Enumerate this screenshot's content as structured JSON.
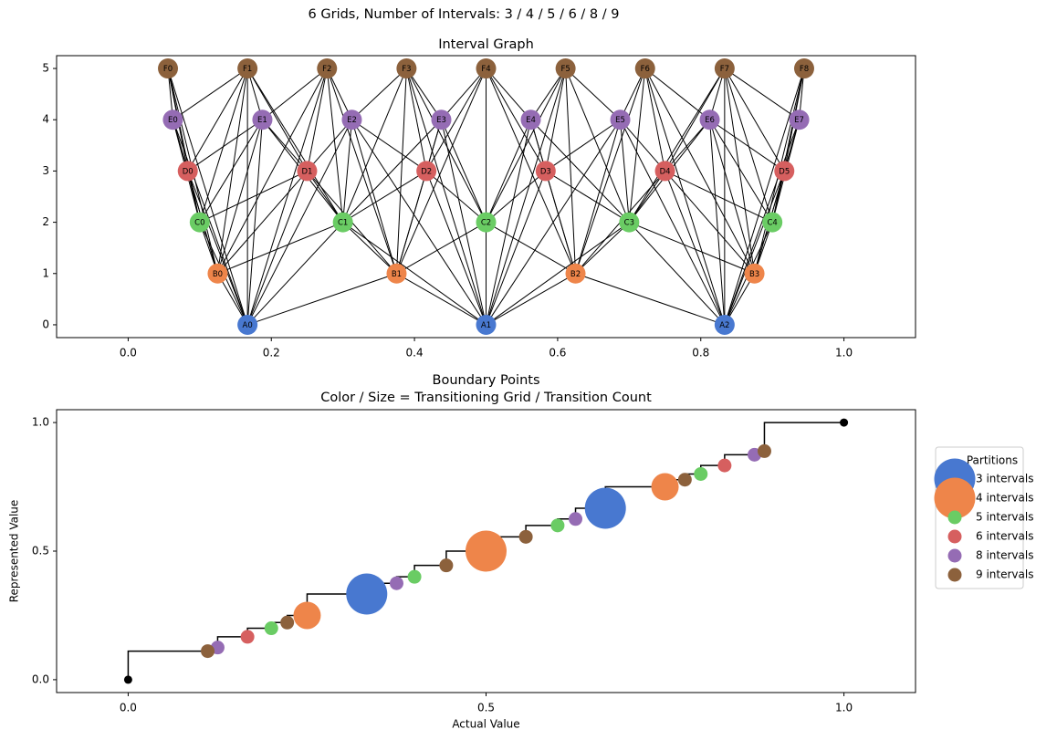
{
  "title": "6 Grids, Number of Intervals: 3 / 4 / 5 / 6 / 8 / 9",
  "chart_data": [
    {
      "type": "graph",
      "title": "Interval Graph",
      "xlim": [
        -0.1,
        1.1
      ],
      "ylim": [
        -0.25,
        5.25
      ],
      "xticks": [
        {
          "value": 0,
          "label": "0.0"
        },
        {
          "value": 0.2,
          "label": "0.2"
        },
        {
          "value": 0.4,
          "label": "0.4"
        },
        {
          "value": 0.6,
          "label": "0.6"
        },
        {
          "value": 0.8,
          "label": "0.8"
        },
        {
          "value": 1,
          "label": "1.0"
        }
      ],
      "yticks": [
        0,
        1,
        2,
        3,
        4,
        5
      ],
      "series": [
        {
          "color": "#4878d0",
          "labels": [
            "A0",
            "A1",
            "A2"
          ],
          "x": [
            0.1667,
            0.5,
            0.8333
          ],
          "values": [
            0,
            0,
            0
          ]
        },
        {
          "color": "#ee854a",
          "labels": [
            "B0",
            "B1",
            "B2",
            "B3"
          ],
          "x": [
            0.125,
            0.375,
            0.625,
            0.875
          ],
          "values": [
            1,
            1,
            1,
            1
          ]
        },
        {
          "color": "#6acc64",
          "labels": [
            "C0",
            "C1",
            "C2",
            "C3",
            "C4"
          ],
          "x": [
            0.1,
            0.3,
            0.5,
            0.7,
            0.9
          ],
          "values": [
            2,
            2,
            2,
            2,
            2
          ]
        },
        {
          "color": "#d65f5f",
          "labels": [
            "D0",
            "D1",
            "D2",
            "D3",
            "D4",
            "D5"
          ],
          "x": [
            0.0833,
            0.25,
            0.4167,
            0.5833,
            0.75,
            0.9167
          ],
          "values": [
            3,
            3,
            3,
            3,
            3,
            3
          ]
        },
        {
          "color": "#956cb4",
          "labels": [
            "E0",
            "E1",
            "E2",
            "E3",
            "E4",
            "E5",
            "E6",
            "E7"
          ],
          "x": [
            0.0625,
            0.1875,
            0.3125,
            0.4375,
            0.5625,
            0.6875,
            0.8125,
            0.9375
          ],
          "values": [
            4,
            4,
            4,
            4,
            4,
            4,
            4,
            4
          ]
        },
        {
          "color": "#8c613c",
          "labels": [
            "F0",
            "F1",
            "F2",
            "F3",
            "F4",
            "F5",
            "F6",
            "F7",
            "F8"
          ],
          "x": [
            0.0556,
            0.1667,
            0.2778,
            0.3889,
            0.5,
            0.6111,
            0.7222,
            0.8333,
            0.9444
          ],
          "values": [
            5,
            5,
            5,
            5,
            5,
            5,
            5,
            5,
            5
          ]
        }
      ]
    },
    {
      "type": "scatter",
      "title": "Boundary Points",
      "subtitle": "Color / Size = Transitioning Grid / Transition Count",
      "xlabel": "Actual Value",
      "ylabel": "Represented Value",
      "xlim": [
        -0.1,
        1.1
      ],
      "ylim": [
        -0.05,
        1.05
      ],
      "xticks": [
        {
          "value": 0,
          "label": "0.0"
        },
        {
          "value": 0.5,
          "label": "0.5"
        },
        {
          "value": 1,
          "label": "1.0"
        }
      ],
      "yticks": [
        {
          "value": 0,
          "label": "0.0"
        },
        {
          "value": 0.5,
          "label": "0.5"
        },
        {
          "value": 1,
          "label": "1.0"
        }
      ],
      "legend": "right",
      "legend_title": "Partitions",
      "step_line": {
        "color": "#000000",
        "x": [
          0,
          0.1111,
          0.125,
          0.1667,
          0.2,
          0.2222,
          0.25,
          0.3333,
          0.375,
          0.4,
          0.4444,
          0.5,
          0.5556,
          0.6,
          0.625,
          0.6667,
          0.75,
          0.7778,
          0.8,
          0.8333,
          0.875,
          0.8889,
          1
        ],
        "values": [
          0,
          0.1111,
          0.125,
          0.1667,
          0.2,
          0.2222,
          0.25,
          0.3333,
          0.375,
          0.4,
          0.4444,
          0.5,
          0.5556,
          0.6,
          0.625,
          0.6667,
          0.75,
          0.7778,
          0.8,
          0.8333,
          0.875,
          0.8889,
          1
        ]
      },
      "series": [
        {
          "name": "3 intervals",
          "color": "#4878d0",
          "x": [
            0.3333,
            0.6667
          ],
          "values": [
            0.3333,
            0.6667
          ],
          "sizes": [
            3,
            3
          ]
        },
        {
          "name": "4 intervals",
          "color": "#ee854a",
          "x": [
            0.25,
            0.5,
            0.75
          ],
          "values": [
            0.25,
            0.5,
            0.75
          ],
          "sizes": [
            2,
            3,
            2
          ]
        },
        {
          "name": "5 intervals",
          "color": "#6acc64",
          "x": [
            0.2,
            0.4,
            0.6,
            0.8
          ],
          "values": [
            0.2,
            0.4,
            0.6,
            0.8
          ],
          "sizes": [
            1,
            1,
            1,
            1
          ]
        },
        {
          "name": "6 intervals",
          "color": "#d65f5f",
          "x": [
            0.1667,
            0.8333
          ],
          "values": [
            0.1667,
            0.8333
          ],
          "sizes": [
            1,
            1
          ]
        },
        {
          "name": "8 intervals",
          "color": "#956cb4",
          "x": [
            0.125,
            0.375,
            0.625,
            0.875
          ],
          "values": [
            0.125,
            0.375,
            0.625,
            0.875
          ],
          "sizes": [
            1,
            1,
            1,
            1
          ]
        },
        {
          "name": "9 intervals",
          "color": "#8c613c",
          "x": [
            0.1111,
            0.2222,
            0.4444,
            0.5556,
            0.7778,
            0.8889
          ],
          "values": [
            0.1111,
            0.2222,
            0.4444,
            0.5556,
            0.7778,
            0.8889
          ],
          "sizes": [
            1,
            1,
            1,
            1,
            1,
            1
          ]
        }
      ]
    }
  ]
}
